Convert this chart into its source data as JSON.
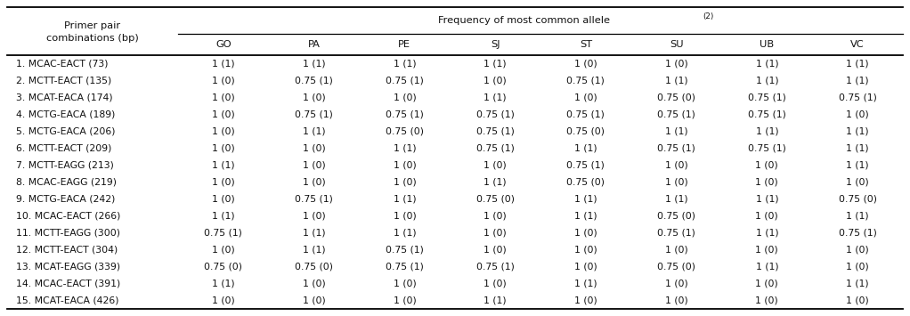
{
  "title": "Frequency of most common allele",
  "title_superscript": "(2)",
  "col1_header": "Primer pair\ncombinations (bp)",
  "columns": [
    "GO",
    "PA",
    "PE",
    "SJ",
    "ST",
    "SU",
    "UB",
    "VC"
  ],
  "rows": [
    {
      "label": "1. MCAC-EACT (73)",
      "GO": "1 (1)",
      "PA": "1 (1)",
      "PE": "1 (1)",
      "SJ": "1 (1)",
      "ST": "1 (0)",
      "SU": "1 (0)",
      "UB": "1 (1)",
      "VC": "1 (1)"
    },
    {
      "label": "2. MCTT-EACT (135)",
      "GO": "1 (0)",
      "PA": "0.75 (1)",
      "PE": "0.75 (1)",
      "SJ": "1 (0)",
      "ST": "0.75 (1)",
      "SU": "1 (1)",
      "UB": "1 (1)",
      "VC": "1 (1)"
    },
    {
      "label": "3. MCAT-EACA (174)",
      "GO": "1 (0)",
      "PA": "1 (0)",
      "PE": "1 (0)",
      "SJ": "1 (1)",
      "ST": "1 (0)",
      "SU": "0.75 (0)",
      "UB": "0.75 (1)",
      "VC": "0.75 (1)"
    },
    {
      "label": "4. MCTG-EACA (189)",
      "GO": "1 (0)",
      "PA": "0.75 (1)",
      "PE": "0.75 (1)",
      "SJ": "0.75 (1)",
      "ST": "0.75 (1)",
      "SU": "0.75 (1)",
      "UB": "0.75 (1)",
      "VC": "1 (0)"
    },
    {
      "label": "5. MCTG-EACA (206)",
      "GO": "1 (0)",
      "PA": "1 (1)",
      "PE": "0.75 (0)",
      "SJ": "0.75 (1)",
      "ST": "0.75 (0)",
      "SU": "1 (1)",
      "UB": "1 (1)",
      "VC": "1 (1)"
    },
    {
      "label": "6. MCTT-EACT (209)",
      "GO": "1 (0)",
      "PA": "1 (0)",
      "PE": "1 (1)",
      "SJ": "0.75 (1)",
      "ST": "1 (1)",
      "SU": "0.75 (1)",
      "UB": "0.75 (1)",
      "VC": "1 (1)"
    },
    {
      "label": "7. MCTT-EAGG (213)",
      "GO": "1 (1)",
      "PA": "1 (0)",
      "PE": "1 (0)",
      "SJ": "1 (0)",
      "ST": "0.75 (1)",
      "SU": "1 (0)",
      "UB": "1 (0)",
      "VC": "1 (1)"
    },
    {
      "label": "8. MCAC-EAGG (219)",
      "GO": "1 (0)",
      "PA": "1 (0)",
      "PE": "1 (0)",
      "SJ": "1 (1)",
      "ST": "0.75 (0)",
      "SU": "1 (0)",
      "UB": "1 (0)",
      "VC": "1 (0)"
    },
    {
      "label": "9. MCTG-EACA (242)",
      "GO": "1 (0)",
      "PA": "0.75 (1)",
      "PE": "1 (1)",
      "SJ": "0.75 (0)",
      "ST": "1 (1)",
      "SU": "1 (1)",
      "UB": "1 (1)",
      "VC": "0.75 (0)"
    },
    {
      "label": "10. MCAC-EACT (266)",
      "GO": "1 (1)",
      "PA": "1 (0)",
      "PE": "1 (0)",
      "SJ": "1 (0)",
      "ST": "1 (1)",
      "SU": "0.75 (0)",
      "UB": "1 (0)",
      "VC": "1 (1)"
    },
    {
      "label": "11. MCTT-EAGG (300)",
      "GO": "0.75 (1)",
      "PA": "1 (1)",
      "PE": "1 (1)",
      "SJ": "1 (0)",
      "ST": "1 (0)",
      "SU": "0.75 (1)",
      "UB": "1 (1)",
      "VC": "0.75 (1)"
    },
    {
      "label": "12. MCTT-EACT (304)",
      "GO": "1 (0)",
      "PA": "1 (1)",
      "PE": "0.75 (1)",
      "SJ": "1 (0)",
      "ST": "1 (0)",
      "SU": "1 (0)",
      "UB": "1 (0)",
      "VC": "1 (0)"
    },
    {
      "label": "13. MCAT-EAGG (339)",
      "GO": "0.75 (0)",
      "PA": "0.75 (0)",
      "PE": "0.75 (1)",
      "SJ": "0.75 (1)",
      "ST": "1 (0)",
      "SU": "0.75 (0)",
      "UB": "1 (1)",
      "VC": "1 (0)"
    },
    {
      "label": "14. MCAC-EACT (391)",
      "GO": "1 (1)",
      "PA": "1 (0)",
      "PE": "1 (0)",
      "SJ": "1 (0)",
      "ST": "1 (1)",
      "SU": "1 (0)",
      "UB": "1 (0)",
      "VC": "1 (1)"
    },
    {
      "label": "15. MCAT-EACA (426)",
      "GO": "1 (0)",
      "PA": "1 (0)",
      "PE": "1 (0)",
      "SJ": "1 (1)",
      "ST": "1 (0)",
      "SU": "1 (0)",
      "UB": "1 (0)",
      "VC": "1 (0)"
    }
  ],
  "background_color": "#ffffff",
  "text_color": "#111111",
  "font_size": 7.8,
  "header_font_size": 8.2,
  "font_family": "DejaVu Sans"
}
